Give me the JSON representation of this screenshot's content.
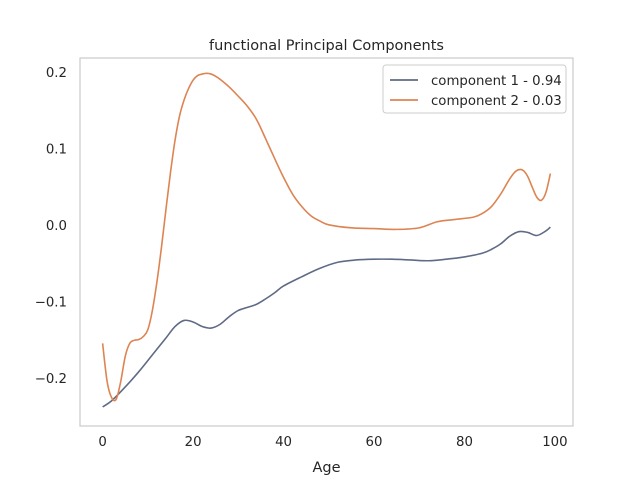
{
  "chart_data": {
    "type": "line",
    "title": "functional Principal Components",
    "xlabel": "Age",
    "ylabel": "",
    "xlim": [
      -5,
      104
    ],
    "ylim": [
      -0.263,
      0.218
    ],
    "xticks": [
      0,
      20,
      40,
      60,
      80,
      100
    ],
    "xtick_labels": [
      "0",
      "20",
      "40",
      "60",
      "80",
      "100"
    ],
    "yticks": [
      -0.2,
      -0.1,
      0.0,
      0.1,
      0.2
    ],
    "ytick_labels": [
      "−0.2",
      "−0.1",
      "0.0",
      "0.1",
      "0.2"
    ],
    "grid": false,
    "legend_position": "top-right",
    "series": [
      {
        "name": "component 1 - 0.94",
        "color": "#5f6b86",
        "x": [
          0,
          2,
          5,
          8,
          11,
          14,
          16,
          18,
          20,
          22,
          24,
          26,
          28,
          30,
          32,
          34,
          36,
          38,
          40,
          44,
          48,
          52,
          56,
          60,
          64,
          68,
          72,
          76,
          80,
          84,
          86,
          88,
          90,
          92,
          94,
          96,
          98,
          99
        ],
        "y": [
          -0.238,
          -0.23,
          -0.212,
          -0.192,
          -0.17,
          -0.148,
          -0.133,
          -0.125,
          -0.127,
          -0.133,
          -0.135,
          -0.13,
          -0.12,
          -0.112,
          -0.108,
          -0.104,
          -0.097,
          -0.089,
          -0.08,
          -0.068,
          -0.057,
          -0.049,
          -0.046,
          -0.045,
          -0.045,
          -0.046,
          -0.047,
          -0.045,
          -0.042,
          -0.037,
          -0.032,
          -0.025,
          -0.015,
          -0.009,
          -0.01,
          -0.014,
          -0.008,
          -0.003
        ]
      },
      {
        "name": "component 2 - 0.03",
        "color": "#dd8452",
        "x": [
          0,
          1,
          2,
          3,
          4,
          5,
          6,
          7,
          8,
          9,
          10,
          11,
          12,
          13,
          14,
          15,
          16,
          17,
          18,
          19,
          20,
          21,
          22,
          23,
          24,
          25,
          26,
          28,
          30,
          32,
          34,
          36,
          38,
          40,
          42,
          44,
          46,
          48,
          50,
          55,
          60,
          65,
          70,
          74,
          78,
          82,
          84,
          86,
          88,
          89,
          90,
          91,
          92,
          93,
          94,
          95,
          96,
          97,
          98,
          99
        ],
        "y": [
          -0.155,
          -0.205,
          -0.226,
          -0.228,
          -0.205,
          -0.172,
          -0.155,
          -0.151,
          -0.15,
          -0.146,
          -0.137,
          -0.112,
          -0.075,
          -0.03,
          0.02,
          0.068,
          0.11,
          0.142,
          0.163,
          0.178,
          0.189,
          0.195,
          0.197,
          0.198,
          0.197,
          0.194,
          0.19,
          0.18,
          0.168,
          0.155,
          0.138,
          0.113,
          0.087,
          0.062,
          0.04,
          0.024,
          0.012,
          0.005,
          0.0,
          -0.004,
          -0.005,
          -0.006,
          -0.004,
          0.004,
          0.007,
          0.01,
          0.015,
          0.024,
          0.04,
          0.05,
          0.06,
          0.068,
          0.072,
          0.071,
          0.063,
          0.049,
          0.036,
          0.032,
          0.042,
          0.067
        ]
      }
    ]
  }
}
